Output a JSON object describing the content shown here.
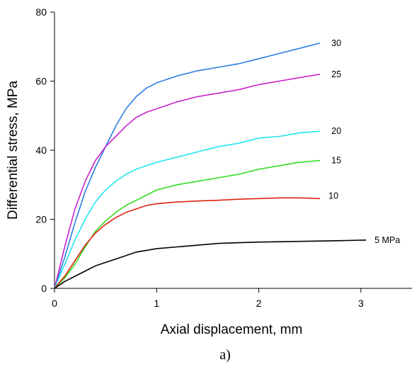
{
  "chart_data": {
    "type": "line",
    "xlabel": "Axial displacement, mm",
    "ylabel": "Differential stress, MPa",
    "caption": "a)",
    "xlim": [
      0,
      3.5
    ],
    "ylim": [
      0,
      80
    ],
    "xticks": [
      0,
      1,
      2,
      3
    ],
    "yticks": [
      0,
      20,
      40,
      60,
      80
    ],
    "grid": false,
    "legend": "none",
    "series": [
      {
        "name": "30",
        "color": "#2a7fe0",
        "x": [
          0,
          0.1,
          0.2,
          0.3,
          0.4,
          0.5,
          0.6,
          0.7,
          0.8,
          0.9,
          1.0,
          1.2,
          1.4,
          1.6,
          1.8,
          2.0,
          2.2,
          2.4,
          2.6
        ],
        "y": [
          0,
          9,
          19,
          28,
          35,
          41,
          47,
          52,
          55.5,
          58,
          59.5,
          61.5,
          63,
          64,
          65,
          66.5,
          68,
          69.5,
          71
        ]
      },
      {
        "name": "25",
        "color": "#cc22cc",
        "x": [
          0,
          0.1,
          0.2,
          0.3,
          0.4,
          0.5,
          0.6,
          0.7,
          0.8,
          0.9,
          1.0,
          1.2,
          1.4,
          1.6,
          1.8,
          2.0,
          2.2,
          2.4,
          2.6
        ],
        "y": [
          0,
          12,
          23,
          31,
          37,
          41,
          44,
          47,
          49.5,
          51,
          52,
          54,
          55.5,
          56.5,
          57.5,
          59,
          60,
          61,
          62
        ]
      },
      {
        "name": "20",
        "color": "#22e5ee",
        "x": [
          0,
          0.1,
          0.2,
          0.3,
          0.4,
          0.5,
          0.6,
          0.7,
          0.8,
          0.9,
          1.0,
          1.2,
          1.4,
          1.6,
          1.8,
          2.0,
          2.2,
          2.4,
          2.6
        ],
        "y": [
          0,
          7,
          14,
          20,
          25,
          28.5,
          31,
          33,
          34.5,
          35.5,
          36.5,
          38,
          39.5,
          41,
          42,
          43.5,
          44,
          45,
          45.5
        ]
      },
      {
        "name": "15",
        "color": "#33dd22",
        "x": [
          0,
          0.1,
          0.2,
          0.3,
          0.4,
          0.5,
          0.6,
          0.7,
          0.8,
          0.9,
          1.0,
          1.2,
          1.4,
          1.6,
          1.8,
          2.0,
          2.2,
          2.4,
          2.6
        ],
        "y": [
          0,
          3,
          7,
          12,
          16.5,
          19.5,
          22,
          24,
          25.5,
          27,
          28.5,
          30,
          31,
          32,
          33,
          34.5,
          35.5,
          36.5,
          37
        ]
      },
      {
        "name": "10",
        "color": "#dd2211",
        "x": [
          0,
          0.1,
          0.2,
          0.3,
          0.4,
          0.5,
          0.6,
          0.7,
          0.8,
          0.9,
          1.0,
          1.2,
          1.4,
          1.6,
          1.8,
          2.0,
          2.2,
          2.4,
          2.6
        ],
        "y": [
          0,
          3.5,
          8,
          12.5,
          16,
          18.5,
          20.5,
          22,
          23,
          24,
          24.5,
          25,
          25.3,
          25.5,
          25.8,
          26,
          26.2,
          26.2,
          26
        ]
      },
      {
        "name": "5 MPa",
        "color": "#000000",
        "x": [
          0,
          0.1,
          0.2,
          0.3,
          0.4,
          0.5,
          0.6,
          0.7,
          0.8,
          1.0,
          1.2,
          1.4,
          1.6,
          1.8,
          2.0,
          2.2,
          2.4,
          2.6,
          2.8,
          3.05
        ],
        "y": [
          0,
          2,
          3.5,
          5,
          6.5,
          7.5,
          8.5,
          9.5,
          10.5,
          11.5,
          12,
          12.5,
          13,
          13.2,
          13.4,
          13.5,
          13.6,
          13.7,
          13.8,
          14
        ]
      }
    ]
  }
}
